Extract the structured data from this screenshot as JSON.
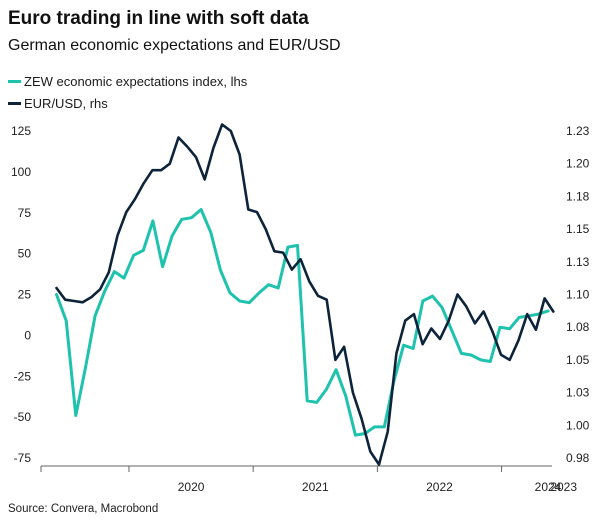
{
  "title": "Euro trading in line with soft data",
  "subtitle": "German economic expectations and EUR/USD",
  "source": "Source: Convera, Macrobond",
  "chart_data": {
    "type": "line",
    "series": [
      {
        "name": "ZEW economic expectations index, lhs",
        "axis": "left",
        "color": "#1ec2ad",
        "start": "2019-06",
        "values": [
          25,
          9,
          -49,
          -20,
          12,
          27,
          39,
          35,
          49,
          52,
          70,
          42,
          61,
          71,
          72,
          77,
          63,
          40,
          26,
          21,
          20,
          26,
          31,
          29,
          54,
          55,
          -40,
          -41,
          -33,
          -21,
          -37,
          -61,
          -60,
          -56,
          -56,
          -28,
          -6,
          -8,
          21,
          24,
          17,
          3,
          -11,
          -12,
          -15,
          -16,
          5,
          4,
          11,
          12,
          13,
          15
        ]
      },
      {
        "name": "EUR/USD, rhs",
        "axis": "right",
        "color": "#0d233a",
        "start": "2019-06",
        "values": [
          1.11,
          1.101,
          1.1,
          1.099,
          1.103,
          1.109,
          1.122,
          1.15,
          1.168,
          1.178,
          1.19,
          1.2,
          1.2,
          1.205,
          1.225,
          1.218,
          1.21,
          1.193,
          1.217,
          1.235,
          1.23,
          1.212,
          1.17,
          1.168,
          1.155,
          1.138,
          1.137,
          1.124,
          1.132,
          1.115,
          1.104,
          1.101,
          1.055,
          1.065,
          1.03,
          1.01,
          0.985,
          0.975,
          1.0,
          1.06,
          1.085,
          1.09,
          1.067,
          1.079,
          1.071,
          1.085,
          1.105,
          1.096,
          1.083,
          1.092,
          1.077,
          1.059,
          1.055,
          1.07,
          1.09,
          1.078,
          1.102,
          1.092
        ]
      }
    ],
    "axes": {
      "left": {
        "min": -75,
        "max": 125,
        "ticks": [
          125,
          100,
          75,
          50,
          25,
          0,
          -25,
          -50,
          -75
        ]
      },
      "right": {
        "min": 0.98,
        "max": 1.23,
        "ticks": [
          "1.23",
          "1.20",
          "1.18",
          "1.15",
          "1.13",
          "1.10",
          "1.08",
          "1.05",
          "1.03",
          "1.00",
          "0.98"
        ]
      },
      "x": {
        "labels": [
          "2020",
          "2021",
          "2022",
          "2023",
          "2024"
        ]
      }
    }
  }
}
